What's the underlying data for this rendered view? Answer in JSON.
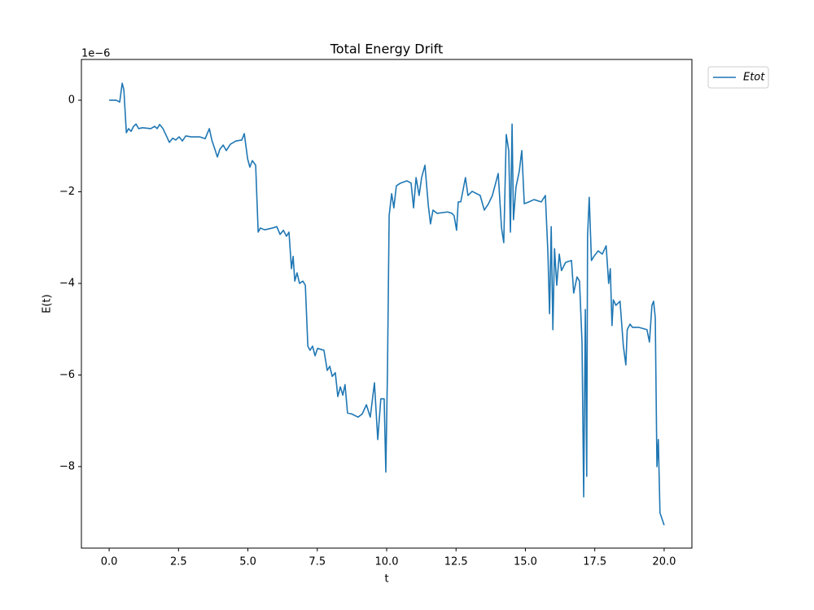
{
  "chart_data": {
    "type": "line",
    "title": "Total Energy Drift",
    "xlabel": "t",
    "ylabel": "E(t)",
    "y_offset_label": "1e−6",
    "legend": "outside upper right",
    "xlim": [
      -1.0,
      21.0
    ],
    "ylim": [
      -9.78,
      0.89
    ],
    "xticks": [
      {
        "value": 0,
        "label": "0.0"
      },
      2.5,
      {
        "value": 5,
        "label": "5.0"
      },
      7.5,
      {
        "value": 10,
        "label": "10.0"
      },
      12.5,
      {
        "value": 15,
        "label": "15.0"
      },
      17.5,
      {
        "value": 20,
        "label": "20.0"
      }
    ],
    "yticks": [
      {
        "value": -8,
        "label": "−8"
      },
      {
        "value": -6,
        "label": "−6"
      },
      {
        "value": -4,
        "label": "−4"
      },
      {
        "value": -2,
        "label": "−2"
      },
      0
    ],
    "x": [
      0,
      0.26,
      0.38,
      0.47,
      0.53,
      0.62,
      0.7,
      0.79,
      0.88,
      0.97,
      1.06,
      1.2,
      1.5,
      1.64,
      1.73,
      1.82,
      1.94,
      2.08,
      2.17,
      2.29,
      2.4,
      2.52,
      2.64,
      2.76,
      2.96,
      3.26,
      3.46,
      3.61,
      3.7,
      3.81,
      3.9,
      3.99,
      4.11,
      4.22,
      4.37,
      4.57,
      4.78,
      4.87,
      4.99,
      5.07,
      5.16,
      5.28,
      5.37,
      5.45,
      5.6,
      5.89,
      6.04,
      6.16,
      6.28,
      6.39,
      6.48,
      6.57,
      6.63,
      6.69,
      6.77,
      6.86,
      6.98,
      7.07,
      7.16,
      7.24,
      7.33,
      7.42,
      7.51,
      7.74,
      7.86,
      7.95,
      8.04,
      8.15,
      8.24,
      8.33,
      8.42,
      8.5,
      8.59,
      8.74,
      8.97,
      9.12,
      9.27,
      9.41,
      9.56,
      9.68,
      9.79,
      9.91,
      9.97,
      10.03,
      10.09,
      10.18,
      10.26,
      10.35,
      10.5,
      10.73,
      10.88,
      10.97,
      11.06,
      11.17,
      11.26,
      11.38,
      11.5,
      11.58,
      11.67,
      11.82,
      12.2,
      12.35,
      12.43,
      12.52,
      12.58,
      12.67,
      12.76,
      12.84,
      12.93,
      13.08,
      13.37,
      13.52,
      13.67,
      13.81,
      14.02,
      14.14,
      14.22,
      14.31,
      14.4,
      14.46,
      14.52,
      14.57,
      14.66,
      14.78,
      14.87,
      14.96,
      15.13,
      15.31,
      15.57,
      15.72,
      15.81,
      15.87,
      15.93,
      15.99,
      16.05,
      16.13,
      16.22,
      16.3,
      16.45,
      16.66,
      16.74,
      16.86,
      16.95,
      17.04,
      17.1,
      17.16,
      17.21,
      17.24,
      17.3,
      17.38,
      17.47,
      17.62,
      17.77,
      17.91,
      18.0,
      18.06,
      18.12,
      18.17,
      18.26,
      18.41,
      18.53,
      18.62,
      18.67,
      18.77,
      18.86,
      19.09,
      19.38,
      19.47,
      19.56,
      19.62,
      19.68,
      19.74,
      19.79,
      19.85,
      20.0
    ],
    "series": [
      {
        "name": "Etot",
        "color": "#1f77b4",
        "values": [
          0,
          0,
          -0.04,
          0.37,
          0.23,
          -0.71,
          -0.62,
          -0.68,
          -0.57,
          -0.52,
          -0.62,
          -0.6,
          -0.62,
          -0.57,
          -0.62,
          -0.53,
          -0.62,
          -0.8,
          -0.92,
          -0.83,
          -0.87,
          -0.8,
          -0.89,
          -0.78,
          -0.8,
          -0.8,
          -0.84,
          -0.62,
          -0.87,
          -1.07,
          -1.24,
          -1.07,
          -0.98,
          -1.1,
          -0.96,
          -0.89,
          -0.87,
          -0.73,
          -1.28,
          -1.46,
          -1.32,
          -1.42,
          -2.88,
          -2.79,
          -2.83,
          -2.79,
          -2.76,
          -2.93,
          -2.84,
          -2.97,
          -2.88,
          -3.68,
          -3.41,
          -3.95,
          -3.77,
          -4.0,
          -3.95,
          -4.04,
          -5.37,
          -5.46,
          -5.37,
          -5.58,
          -5.42,
          -5.46,
          -5.9,
          -5.81,
          -6.03,
          -5.95,
          -6.47,
          -6.26,
          -6.44,
          -6.21,
          -6.83,
          -6.85,
          -6.92,
          -6.85,
          -6.65,
          -6.92,
          -6.17,
          -7.41,
          -6.52,
          -6.52,
          -8.12,
          -5.9,
          -2.52,
          -2.04,
          -2.35,
          -1.87,
          -1.81,
          -1.76,
          -1.81,
          -2.35,
          -1.69,
          -2.08,
          -1.69,
          -1.42,
          -2.29,
          -2.7,
          -2.4,
          -2.47,
          -2.44,
          -2.47,
          -2.52,
          -2.84,
          -2.22,
          -2.22,
          -1.94,
          -1.69,
          -2.08,
          -1.99,
          -2.08,
          -2.4,
          -2.26,
          -2.08,
          -1.6,
          -2.79,
          -3.11,
          -0.75,
          -1.1,
          -2.88,
          -0.52,
          -2.61,
          -1.9,
          -1.55,
          -1.1,
          -2.26,
          -2.22,
          -2.17,
          -2.22,
          -2.08,
          -3.32,
          -4.66,
          -2.76,
          -5.01,
          -3.24,
          -4.04,
          -3.36,
          -3.72,
          -3.54,
          -3.5,
          -4.21,
          -3.86,
          -3.95,
          -5.28,
          -8.66,
          -4.57,
          -8.21,
          -2.97,
          -2.12,
          -3.5,
          -3.41,
          -3.29,
          -3.36,
          -3.18,
          -4.0,
          -3.68,
          -4.92,
          -4.36,
          -4.48,
          -4.39,
          -5.37,
          -5.78,
          -5.01,
          -4.89,
          -4.96,
          -4.96,
          -5.01,
          -5.28,
          -4.48,
          -4.39,
          -4.75,
          -8.0,
          -7.41,
          -9.01,
          -9.28
        ]
      }
    ]
  }
}
